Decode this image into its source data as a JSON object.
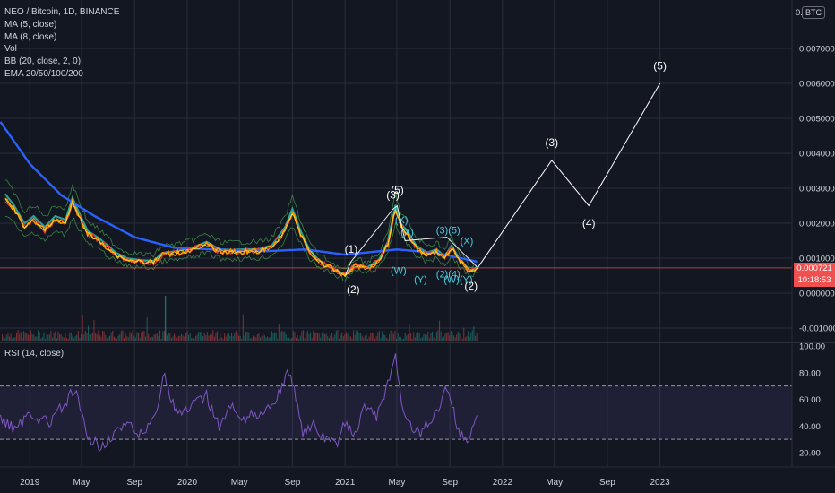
{
  "legend": {
    "symbol": "NEO / Bitcoin, 1D, BINANCE",
    "ma5": "MA (5, close)",
    "ma8": "MA (8, close)",
    "vol": "Vol",
    "bb": "BB (20, close, 2, 0)",
    "ema": "EMA 20/50/100/200"
  },
  "rsi_legend": "RSI (14, close)",
  "currency_badge": "BTC",
  "last_price": {
    "value": "0.000721",
    "countdown": "10:18:53"
  },
  "colors": {
    "background": "#131722",
    "grid": "#2a2e39",
    "ema_blue": "#2962ff",
    "ema_teal": "#26a69a",
    "ma_orange": "#ff9800",
    "bb_green": "#4caf50",
    "wave_white": "#ffffff",
    "wave_cyan": "#4dd0e1",
    "rsi_line": "#7e57c2",
    "price_line": "#f0504f"
  },
  "chart_data": [
    {
      "type": "line",
      "title": "NEO / Bitcoin, 1D, BINANCE",
      "unit": "BTC",
      "x_ticks": [
        "2019",
        "May",
        "Sep",
        "2020",
        "May",
        "Sep",
        "2021",
        "May",
        "Sep",
        "2022",
        "May",
        "Sep",
        "2023"
      ],
      "y_ticks": [
        "0.007000",
        "0.006000",
        "0.005000",
        "0.004000",
        "0.003000",
        "0.002000",
        "0.001000",
        "0.000000",
        "-0.001000"
      ],
      "ylim": [
        -0.0013,
        0.0078
      ],
      "last_price": 0.000721,
      "price_path": [
        [
          "2018-11-05",
          0.0027
        ],
        [
          "2018-11-25",
          0.0024
        ],
        [
          "2018-12-20",
          0.0019
        ],
        [
          "2019-01-10",
          0.0021
        ],
        [
          "2019-02-05",
          0.0018
        ],
        [
          "2019-03-01",
          0.0021
        ],
        [
          "2019-03-25",
          0.002
        ],
        [
          "2019-04-10",
          0.0026
        ],
        [
          "2019-04-25",
          0.0022
        ],
        [
          "2019-05-15",
          0.0017
        ],
        [
          "2019-06-10",
          0.0015
        ],
        [
          "2019-07-01",
          0.0013
        ],
        [
          "2019-07-20",
          0.0011
        ],
        [
          "2019-08-15",
          0.00095
        ],
        [
          "2019-09-15",
          0.0009
        ],
        [
          "2019-10-15",
          0.00088
        ],
        [
          "2019-11-05",
          0.0011
        ],
        [
          "2019-12-10",
          0.00115
        ],
        [
          "2020-01-15",
          0.00125
        ],
        [
          "2020-02-15",
          0.0014
        ],
        [
          "2020-03-15",
          0.0012
        ],
        [
          "2020-04-15",
          0.00118
        ],
        [
          "2020-05-15",
          0.0012
        ],
        [
          "2020-06-15",
          0.0012
        ],
        [
          "2020-07-15",
          0.0013
        ],
        [
          "2020-08-15",
          0.0018
        ],
        [
          "2020-09-01",
          0.0023
        ],
        [
          "2020-09-20",
          0.0017
        ],
        [
          "2020-10-10",
          0.0012
        ],
        [
          "2020-11-01",
          0.0009
        ],
        [
          "2020-12-01",
          0.0007
        ],
        [
          "2021-01-01",
          0.0005
        ],
        [
          "2021-01-25",
          0.0008
        ],
        [
          "2021-02-20",
          0.0007
        ],
        [
          "2021-03-20",
          0.0009
        ],
        [
          "2021-04-10",
          0.0014
        ],
        [
          "2021-04-28",
          0.0024
        ],
        [
          "2021-05-10",
          0.0019
        ],
        [
          "2021-05-25",
          0.0017
        ],
        [
          "2021-06-15",
          0.0013
        ],
        [
          "2021-07-10",
          0.0011
        ],
        [
          "2021-08-01",
          0.0012
        ],
        [
          "2021-08-20",
          0.001
        ],
        [
          "2021-09-05",
          0.0013
        ],
        [
          "2021-09-25",
          0.0009
        ],
        [
          "2021-10-20",
          0.0006
        ],
        [
          "2021-11-03",
          0.000721
        ]
      ],
      "ema_slow_path": [
        [
          "2018-10-25",
          0.0049
        ],
        [
          "2019-01-01",
          0.0037
        ],
        [
          "2019-03-15",
          0.0028
        ],
        [
          "2019-06-01",
          0.0022
        ],
        [
          "2019-09-01",
          0.0016
        ],
        [
          "2019-12-01",
          0.0013
        ],
        [
          "2020-03-01",
          0.00125
        ],
        [
          "2020-07-01",
          0.0012
        ],
        [
          "2020-10-01",
          0.00125
        ],
        [
          "2021-01-01",
          0.0011
        ],
        [
          "2021-05-01",
          0.00125
        ],
        [
          "2021-08-01",
          0.00115
        ],
        [
          "2021-11-03",
          0.0009
        ]
      ],
      "projection": [
        [
          "2021-11-03",
          0.0007
        ],
        [
          "2022-04-25",
          0.0038
        ],
        [
          "2022-07-20",
          0.0025
        ],
        [
          "2023-01-01",
          0.006
        ]
      ],
      "wave_labels": [
        {
          "text": "(1)",
          "date": "2021-01-15",
          "price": 0.00115
        },
        {
          "text": "(2)",
          "date": "2021-01-20",
          "price": 0.0
        },
        {
          "text": "(3)",
          "date": "2021-04-22",
          "price": 0.0027
        },
        {
          "text": "(5)",
          "date": "2021-05-02",
          "price": 0.00285
        },
        {
          "text": "(3)",
          "date": "2022-04-25",
          "price": 0.0042
        },
        {
          "text": "(4)",
          "date": "2022-07-20",
          "price": 0.0019
        },
        {
          "text": "(5)",
          "date": "2023-01-01",
          "price": 0.0064
        },
        {
          "text": "(2)",
          "date": "2021-10-20",
          "price": 0.0001
        }
      ],
      "minor_wave_labels": [
        {
          "text": "(X)",
          "date": "2021-05-12",
          "price": 0.002
        },
        {
          "text": "(X)",
          "date": "2021-05-25",
          "price": 0.00165
        },
        {
          "text": "(W)",
          "date": "2021-05-05",
          "price": 0.00055
        },
        {
          "text": "(Y)",
          "date": "2021-06-25",
          "price": 0.0003
        },
        {
          "text": "(3)(5)",
          "date": "2021-08-28",
          "price": 0.0017
        },
        {
          "text": "(X)",
          "date": "2021-10-10",
          "price": 0.0014
        },
        {
          "text": "(2)(4)",
          "date": "2021-08-28",
          "price": 0.00045
        },
        {
          "text": "(W)(Y)",
          "date": "2021-09-20",
          "price": 0.0003
        }
      ]
    },
    {
      "type": "line",
      "title": "RSI (14, close)",
      "y_ticks": [
        "100.00",
        "80.00",
        "60.00",
        "40.00",
        "20.00"
      ],
      "ylim": [
        11,
        100
      ],
      "band": [
        30,
        70
      ],
      "series": [
        [
          "2018-10-25",
          45
        ],
        [
          "2018-12-01",
          38
        ],
        [
          "2019-01-01",
          50
        ],
        [
          "2019-02-15",
          42
        ],
        [
          "2019-04-01",
          60
        ],
        [
          "2019-04-15",
          68
        ],
        [
          "2019-05-15",
          30
        ],
        [
          "2019-06-15",
          25
        ],
        [
          "2019-07-15",
          35
        ],
        [
          "2019-08-15",
          40
        ],
        [
          "2019-09-15",
          33
        ],
        [
          "2019-10-15",
          45
        ],
        [
          "2019-11-10",
          80
        ],
        [
          "2019-11-25",
          58
        ],
        [
          "2019-12-15",
          48
        ],
        [
          "2020-01-15",
          55
        ],
        [
          "2020-02-15",
          62
        ],
        [
          "2020-03-15",
          40
        ],
        [
          "2020-04-15",
          55
        ],
        [
          "2020-05-15",
          45
        ],
        [
          "2020-06-15",
          50
        ],
        [
          "2020-07-15",
          55
        ],
        [
          "2020-08-20",
          78
        ],
        [
          "2020-09-05",
          70
        ],
        [
          "2020-09-25",
          35
        ],
        [
          "2020-10-20",
          40
        ],
        [
          "2020-11-15",
          30
        ],
        [
          "2020-12-10",
          25
        ],
        [
          "2021-01-05",
          45
        ],
        [
          "2021-01-20",
          28
        ],
        [
          "2021-02-15",
          55
        ],
        [
          "2021-03-15",
          48
        ],
        [
          "2021-04-10",
          70
        ],
        [
          "2021-04-28",
          90
        ],
        [
          "2021-05-12",
          58
        ],
        [
          "2021-06-01",
          40
        ],
        [
          "2021-06-25",
          35
        ],
        [
          "2021-07-20",
          45
        ],
        [
          "2021-08-10",
          55
        ],
        [
          "2021-08-25",
          70
        ],
        [
          "2021-09-10",
          50
        ],
        [
          "2021-09-25",
          33
        ],
        [
          "2021-10-15",
          30
        ],
        [
          "2021-11-03",
          48
        ]
      ]
    }
  ]
}
